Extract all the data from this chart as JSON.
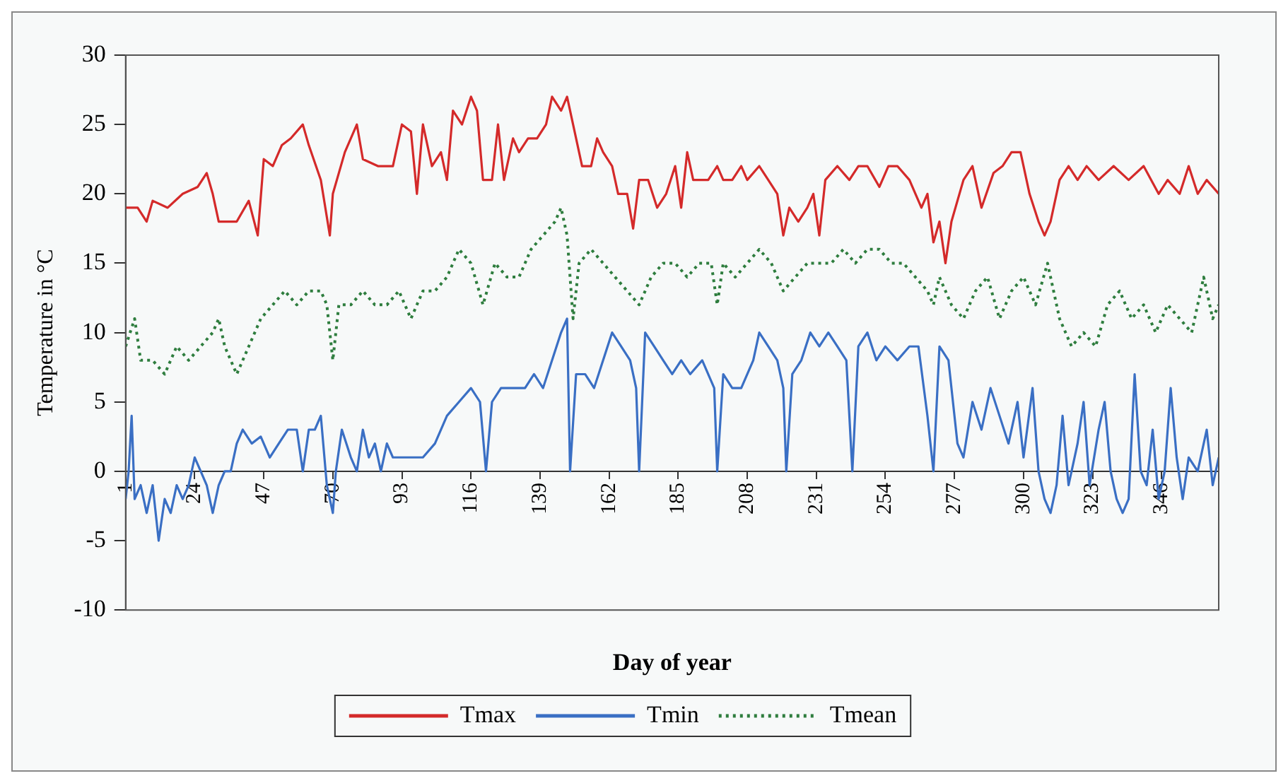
{
  "chart_data": {
    "type": "line",
    "xlabel": "Day of year",
    "ylabel": "Temperature in °C",
    "xlim": [
      1,
      365
    ],
    "xticks": [
      1,
      24,
      47,
      70,
      93,
      116,
      139,
      162,
      185,
      208,
      231,
      254,
      277,
      300,
      323,
      346
    ],
    "ylim": [
      -10,
      30
    ],
    "yticks": [
      -10,
      -5,
      0,
      5,
      10,
      15,
      20,
      25,
      30
    ],
    "grid": false,
    "legend": "bottom",
    "marker": "none",
    "series": [
      {
        "name": "Tmax",
        "color": "#d42a2a",
        "line_style": "solid",
        "x": [
          1,
          5,
          8,
          10,
          15,
          20,
          25,
          28,
          30,
          32,
          38,
          42,
          45,
          47,
          50,
          53,
          56,
          60,
          62,
          66,
          69,
          70,
          74,
          78,
          80,
          85,
          90,
          93,
          96,
          98,
          100,
          103,
          106,
          108,
          110,
          113,
          116,
          118,
          120,
          123,
          125,
          127,
          130,
          132,
          135,
          138,
          141,
          143,
          146,
          148,
          150,
          153,
          156,
          158,
          160,
          163,
          165,
          168,
          170,
          172,
          175,
          178,
          181,
          184,
          186,
          188,
          190,
          195,
          198,
          200,
          203,
          206,
          208,
          212,
          215,
          218,
          220,
          222,
          225,
          228,
          230,
          232,
          234,
          238,
          242,
          245,
          248,
          252,
          255,
          258,
          262,
          266,
          268,
          270,
          272,
          274,
          276,
          280,
          283,
          286,
          290,
          293,
          296,
          299,
          302,
          305,
          307,
          309,
          312,
          315,
          318,
          321,
          325,
          330,
          335,
          340,
          345,
          348,
          352,
          355,
          358,
          361,
          365
        ],
        "values": [
          19,
          19,
          18,
          19.5,
          19,
          20,
          20.5,
          21.5,
          20,
          18,
          18,
          19.5,
          17,
          22.5,
          22,
          23.5,
          24,
          25,
          23.5,
          21,
          17,
          20,
          23,
          25,
          22.5,
          22,
          22,
          25,
          24.5,
          20,
          25,
          22,
          23,
          21,
          26,
          25,
          27,
          26,
          21,
          21,
          25,
          21,
          24,
          23,
          24,
          24,
          25,
          27,
          26,
          27,
          25,
          22,
          22,
          24,
          23,
          22,
          20,
          20,
          17.5,
          21,
          21,
          19,
          20,
          22,
          19,
          23,
          21,
          21,
          22,
          21,
          21,
          22,
          21,
          22,
          21,
          20,
          17,
          19,
          18,
          19,
          20,
          17,
          21,
          22,
          21,
          22,
          22,
          20.5,
          22,
          22,
          21,
          19,
          20,
          16.5,
          18,
          15,
          18,
          21,
          22,
          19,
          21.5,
          22,
          23,
          23,
          20,
          18,
          17,
          18,
          21,
          22,
          21,
          22,
          21,
          22,
          21,
          22,
          20,
          21,
          20,
          22,
          20,
          21,
          20
        ]
      },
      {
        "name": "Tmin",
        "color": "#3a6fc4",
        "line_style": "solid",
        "x": [
          1,
          2,
          3,
          4,
          6,
          8,
          10,
          12,
          14,
          16,
          18,
          20,
          22,
          24,
          26,
          28,
          30,
          32,
          34,
          36,
          38,
          40,
          43,
          46,
          49,
          52,
          55,
          58,
          60,
          62,
          64,
          66,
          68,
          70,
          71,
          73,
          76,
          78,
          80,
          82,
          84,
          86,
          88,
          90,
          93,
          96,
          100,
          104,
          108,
          112,
          116,
          119,
          121,
          123,
          126,
          130,
          134,
          137,
          140,
          143,
          146,
          148,
          149,
          151,
          154,
          157,
          160,
          163,
          166,
          169,
          171,
          172,
          174,
          177,
          180,
          183,
          186,
          189,
          193,
          197,
          198,
          200,
          203,
          206,
          210,
          212,
          215,
          218,
          220,
          221,
          223,
          226,
          229,
          232,
          235,
          238,
          241,
          243,
          245,
          248,
          251,
          254,
          258,
          262,
          265,
          268,
          270,
          272,
          275,
          278,
          280,
          283,
          286,
          289,
          292,
          295,
          298,
          300,
          303,
          305,
          307,
          309,
          311,
          313,
          315,
          318,
          320,
          322,
          325,
          327,
          329,
          331,
          333,
          335,
          337,
          339,
          341,
          343,
          345,
          347,
          349,
          351,
          353,
          355,
          358,
          361,
          363,
          365
        ],
        "values": [
          -2,
          0,
          4,
          -2,
          -1,
          -3,
          -1,
          -5,
          -2,
          -3,
          -1,
          -2,
          -1,
          1,
          0,
          -1,
          -3,
          -1,
          0,
          0,
          2,
          3,
          2,
          2.5,
          1,
          2,
          3,
          3,
          0,
          3,
          3,
          4,
          -1,
          -3,
          0,
          3,
          1,
          0,
          3,
          1,
          2,
          0,
          2,
          1,
          1,
          1,
          1,
          2,
          4,
          5,
          6,
          5,
          0,
          5,
          6,
          6,
          6,
          7,
          6,
          8,
          10,
          11,
          0,
          7,
          7,
          6,
          8,
          10,
          9,
          8,
          6,
          0,
          10,
          9,
          8,
          7,
          8,
          7,
          8,
          6,
          0,
          7,
          6,
          6,
          8,
          10,
          9,
          8,
          6,
          0,
          7,
          8,
          10,
          9,
          10,
          9,
          8,
          0,
          9,
          10,
          8,
          9,
          8,
          9,
          9,
          4,
          0,
          9,
          8,
          2,
          1,
          5,
          3,
          6,
          4,
          2,
          5,
          1,
          6,
          0,
          -2,
          -3,
          -1,
          4,
          -1,
          2,
          5,
          -1,
          3,
          5,
          0,
          -2,
          -3,
          -2,
          7,
          0,
          -1,
          3,
          -2,
          0,
          6,
          1,
          -2,
          1,
          0,
          3,
          -1,
          1
        ]
      },
      {
        "name": "Tmean",
        "color": "#2e7d3e",
        "line_style": "dotted",
        "x": [
          1,
          4,
          6,
          10,
          14,
          18,
          22,
          26,
          30,
          32,
          34,
          38,
          42,
          46,
          50,
          54,
          58,
          62,
          66,
          68,
          70,
          72,
          76,
          80,
          84,
          88,
          92,
          96,
          100,
          104,
          108,
          112,
          116,
          120,
          124,
          128,
          132,
          136,
          140,
          144,
          146,
          148,
          150,
          152,
          156,
          160,
          164,
          168,
          172,
          176,
          180,
          184,
          188,
          192,
          196,
          198,
          200,
          204,
          208,
          212,
          216,
          220,
          224,
          228,
          232,
          236,
          240,
          244,
          248,
          252,
          256,
          260,
          264,
          268,
          270,
          272,
          276,
          280,
          284,
          288,
          292,
          296,
          300,
          304,
          308,
          312,
          316,
          320,
          324,
          328,
          332,
          336,
          340,
          344,
          348,
          352,
          356,
          360,
          363,
          365
        ],
        "values": [
          9,
          11,
          8,
          8,
          7,
          9,
          8,
          9,
          10,
          11,
          9,
          7,
          9,
          11,
          12,
          13,
          12,
          13,
          13,
          12,
          8,
          12,
          12,
          13,
          12,
          12,
          13,
          11,
          13,
          13,
          14,
          16,
          15,
          12,
          15,
          14,
          14,
          16,
          17,
          18,
          19,
          17,
          11,
          15,
          16,
          15,
          14,
          13,
          12,
          14,
          15,
          15,
          14,
          15,
          15,
          12,
          15,
          14,
          15,
          16,
          15,
          13,
          14,
          15,
          15,
          15,
          16,
          15,
          16,
          16,
          15,
          15,
          14,
          13,
          12,
          14,
          12,
          11,
          13,
          14,
          11,
          13,
          14,
          12,
          15,
          11,
          9,
          10,
          9,
          12,
          13,
          11,
          12,
          10,
          12,
          11,
          10,
          14,
          11,
          12
        ]
      }
    ]
  }
}
